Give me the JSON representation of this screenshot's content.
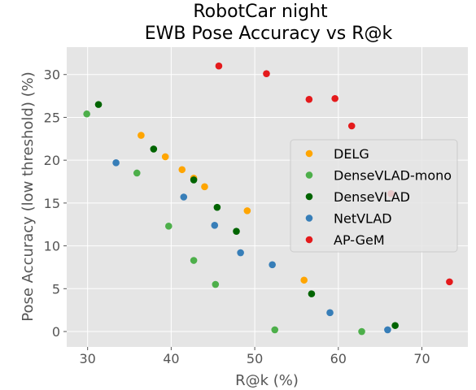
{
  "chart_data": {
    "type": "scatter",
    "title": [
      "RobotCar night",
      "EWB Pose Accuracy vs R@k"
    ],
    "xlabel": "R@k (%)",
    "ylabel": "Pose Accuracy (low threshold) (%)",
    "xlim": [
      27.5,
      75.5
    ],
    "ylim": [
      -1.8,
      33.2
    ],
    "xticks": [
      30,
      40,
      50,
      60,
      70
    ],
    "yticks": [
      0,
      5,
      10,
      15,
      20,
      25,
      30
    ],
    "grid": true,
    "legend_position": "center-right",
    "series": [
      {
        "name": "DELG",
        "color": "#ffa500",
        "points": [
          [
            36.4,
            22.9
          ],
          [
            39.3,
            20.4
          ],
          [
            41.3,
            18.9
          ],
          [
            42.7,
            17.9
          ],
          [
            44.0,
            16.9
          ],
          [
            49.1,
            14.1
          ],
          [
            55.9,
            6.0
          ]
        ]
      },
      {
        "name": "DenseVLAD-mono",
        "color": "#4daf4a",
        "points": [
          [
            29.9,
            25.4
          ],
          [
            35.9,
            18.5
          ],
          [
            39.7,
            12.3
          ],
          [
            42.7,
            8.3
          ],
          [
            45.3,
            5.5
          ],
          [
            52.4,
            0.2
          ],
          [
            62.8,
            0.0
          ]
        ]
      },
      {
        "name": "DenseVLAD",
        "color": "#006400",
        "points": [
          [
            31.3,
            26.5
          ],
          [
            37.9,
            21.3
          ],
          [
            42.7,
            17.7
          ],
          [
            45.5,
            14.5
          ],
          [
            47.8,
            11.7
          ],
          [
            56.8,
            4.4
          ],
          [
            66.8,
            0.7
          ]
        ]
      },
      {
        "name": "NetVLAD",
        "color": "#377eb8",
        "points": [
          [
            33.4,
            19.7
          ],
          [
            41.5,
            15.7
          ],
          [
            45.2,
            12.4
          ],
          [
            48.3,
            9.2
          ],
          [
            52.1,
            7.8
          ],
          [
            59.0,
            2.2
          ],
          [
            65.9,
            0.2
          ]
        ]
      },
      {
        "name": "AP-GeM",
        "color": "#e41a1c",
        "points": [
          [
            45.7,
            31.0
          ],
          [
            51.4,
            30.1
          ],
          [
            56.5,
            27.1
          ],
          [
            59.6,
            27.2
          ],
          [
            61.6,
            24.0
          ],
          [
            66.3,
            16.1
          ],
          [
            73.3,
            5.8
          ]
        ]
      }
    ]
  }
}
